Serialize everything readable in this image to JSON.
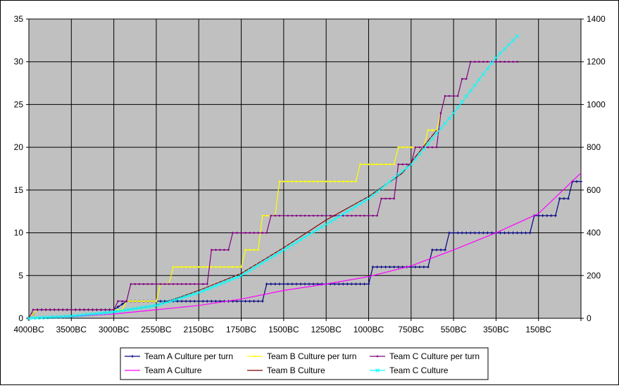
{
  "chart_data": {
    "type": "line",
    "title": "",
    "xlabel": "",
    "ylabel": "",
    "y2label": "",
    "x_tick_labels": [
      "4000BC",
      "3500BC",
      "3000BC",
      "2550BC",
      "2150BC",
      "1750BC",
      "1500BC",
      "1250BC",
      "1000BC",
      "750BC",
      "550BC",
      "350BC",
      "150BC"
    ],
    "x_range_turns": [
      0,
      130
    ],
    "y_left": {
      "min": 0,
      "max": 35,
      "ticks": [
        0,
        5,
        10,
        15,
        20,
        25,
        30,
        35
      ]
    },
    "y_right": {
      "min": 0,
      "max": 1400,
      "ticks": [
        0,
        200,
        400,
        600,
        800,
        1000,
        1200,
        1400
      ]
    },
    "plot_background": "#c0c0c0",
    "grid": true,
    "legend_position": "bottom",
    "series": [
      {
        "name": "Team A Culture per turn",
        "axis": "left",
        "color": "#000080",
        "marker": "plus",
        "step": true,
        "points": [
          [
            0,
            0
          ],
          [
            2,
            1
          ],
          [
            20,
            1
          ],
          [
            23,
            2
          ],
          [
            55,
            2
          ],
          [
            56,
            4
          ],
          [
            80,
            4
          ],
          [
            81,
            6
          ],
          [
            94,
            6
          ],
          [
            95,
            8
          ],
          [
            98,
            8
          ],
          [
            99,
            10
          ],
          [
            118,
            10
          ],
          [
            119,
            12
          ],
          [
            124,
            12
          ],
          [
            125,
            14
          ],
          [
            127,
            14
          ],
          [
            128,
            16
          ],
          [
            130,
            16
          ]
        ]
      },
      {
        "name": "Team B Culture per turn",
        "axis": "left",
        "color": "#ffff00",
        "marker": "dot",
        "step": true,
        "points": [
          [
            0,
            0
          ],
          [
            2,
            1
          ],
          [
            22,
            1
          ],
          [
            23,
            2
          ],
          [
            30,
            2
          ],
          [
            31,
            4
          ],
          [
            33,
            4
          ],
          [
            34,
            6
          ],
          [
            50,
            6
          ],
          [
            51,
            8
          ],
          [
            54,
            8
          ],
          [
            55,
            12
          ],
          [
            58,
            12
          ],
          [
            59,
            16
          ],
          [
            77,
            16
          ],
          [
            78,
            18
          ],
          [
            86,
            18
          ],
          [
            87,
            20
          ],
          [
            93,
            20
          ],
          [
            94,
            22
          ],
          [
            96,
            22
          ],
          [
            97,
            24
          ]
        ]
      },
      {
        "name": "Team C Culture per turn",
        "axis": "left",
        "color": "#800080",
        "marker": "dot",
        "step": true,
        "points": [
          [
            0,
            0
          ],
          [
            1,
            1
          ],
          [
            20,
            1
          ],
          [
            21,
            2
          ],
          [
            23,
            2
          ],
          [
            24,
            4
          ],
          [
            42,
            4
          ],
          [
            43,
            8
          ],
          [
            47,
            8
          ],
          [
            48,
            10
          ],
          [
            56,
            10
          ],
          [
            57,
            12
          ],
          [
            82,
            12
          ],
          [
            83,
            14
          ],
          [
            86,
            14
          ],
          [
            87,
            18
          ],
          [
            90,
            18
          ],
          [
            91,
            20
          ],
          [
            96,
            20
          ],
          [
            97,
            24
          ],
          [
            98,
            26
          ],
          [
            101,
            26
          ],
          [
            102,
            28
          ],
          [
            103,
            28
          ],
          [
            104,
            30
          ],
          [
            115,
            30
          ]
        ]
      },
      {
        "name": "Team A Culture",
        "axis": "right",
        "color": "#ff00ff",
        "marker": "none",
        "step": false,
        "points": [
          [
            0,
            0
          ],
          [
            10,
            8
          ],
          [
            20,
            20
          ],
          [
            30,
            40
          ],
          [
            40,
            60
          ],
          [
            50,
            90
          ],
          [
            60,
            130
          ],
          [
            70,
            160
          ],
          [
            80,
            195
          ],
          [
            90,
            245
          ],
          [
            100,
            320
          ],
          [
            110,
            400
          ],
          [
            120,
            490
          ],
          [
            130,
            680
          ]
        ]
      },
      {
        "name": "Team B Culture",
        "axis": "right",
        "color": "#800000",
        "marker": "none",
        "step": false,
        "points": [
          [
            0,
            0
          ],
          [
            10,
            10
          ],
          [
            20,
            30
          ],
          [
            30,
            60
          ],
          [
            40,
            130
          ],
          [
            50,
            210
          ],
          [
            60,
            330
          ],
          [
            70,
            460
          ],
          [
            80,
            570
          ],
          [
            88,
            680
          ],
          [
            96,
            880
          ]
        ]
      },
      {
        "name": "Team C Culture",
        "axis": "right",
        "color": "#00ffff",
        "marker": "x",
        "step": false,
        "points": [
          [
            0,
            0
          ],
          [
            10,
            10
          ],
          [
            20,
            30
          ],
          [
            30,
            60
          ],
          [
            40,
            120
          ],
          [
            50,
            200
          ],
          [
            60,
            320
          ],
          [
            70,
            440
          ],
          [
            80,
            560
          ],
          [
            90,
            720
          ],
          [
            100,
            960
          ],
          [
            110,
            1220
          ],
          [
            115,
            1320
          ]
        ]
      }
    ]
  }
}
